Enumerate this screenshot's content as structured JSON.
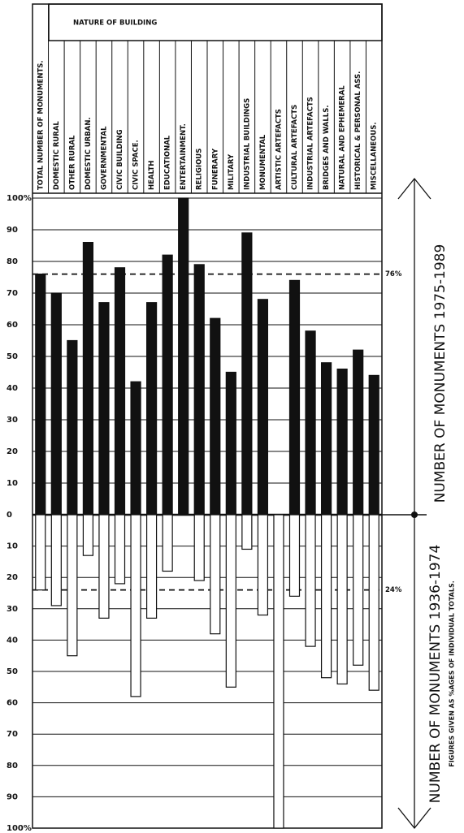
{
  "chart_data": {
    "type": "bar",
    "header": "NATURE OF BUILDING",
    "categories": [
      "TOTAL NUMBER OF MONUMENTS.",
      "DOMESTIC RURAL",
      "OTHER RURAL",
      "DOMESTIC URBAN.",
      "GOVERNMENTAL",
      "CIVIC BUILDING",
      "CIVIC SPACE.",
      "HEALTH",
      "EDUCATIONAL",
      "ENTERTAINMENT.",
      "RELIGIOUS",
      "FUNERARY",
      "MILITARY",
      "INDUSTRIAL BUILDINGS",
      "MONUMENTAL",
      "ARTISTIC ARTEFACTS",
      "CULTURAL ARTEFACTS",
      "INDUSTRIAL ARTEFACTS",
      "BRIDGES AND WALLS.",
      "NATURAL AND EPHEMERAL",
      "HISTORICAL & PERSONAL ASS.",
      "MISCELLANEOUS."
    ],
    "series": [
      {
        "name": "NUMBER OF MONUMENTS 1975-1989",
        "color": "#111111",
        "axis": "y",
        "values": [
          76,
          70,
          55,
          86,
          67,
          78,
          42,
          67,
          82,
          100,
          79,
          62,
          45,
          89,
          68,
          0,
          74,
          58,
          48,
          46,
          52,
          44
        ]
      },
      {
        "name": "NUMBER OF MONUMENTS 1936-1974",
        "color": "#ffffff",
        "axis": "y2",
        "values": [
          24,
          29,
          45,
          13,
          33,
          22,
          58,
          33,
          18,
          0,
          21,
          38,
          55,
          11,
          32,
          100,
          26,
          42,
          52,
          54,
          48,
          56
        ]
      }
    ],
    "note": "FIGURES GIVEN AS %AGES OF INDIVIDUAL TOTALS.",
    "ylim": [
      0,
      100
    ],
    "yticks": [
      0,
      10,
      20,
      30,
      40,
      50,
      60,
      70,
      80,
      90,
      {
        "value": 100,
        "label": "100%"
      }
    ],
    "y2lim": [
      0,
      100
    ],
    "y2ticks": [
      10,
      20,
      30,
      40,
      50,
      60,
      70,
      80,
      90,
      {
        "value": 100,
        "label": "100%"
      }
    ],
    "reference_lines": [
      {
        "value": 76,
        "label": "76%",
        "axis": "y"
      },
      {
        "value": 24,
        "label": "24%",
        "axis": "y2"
      }
    ],
    "grid": true
  }
}
